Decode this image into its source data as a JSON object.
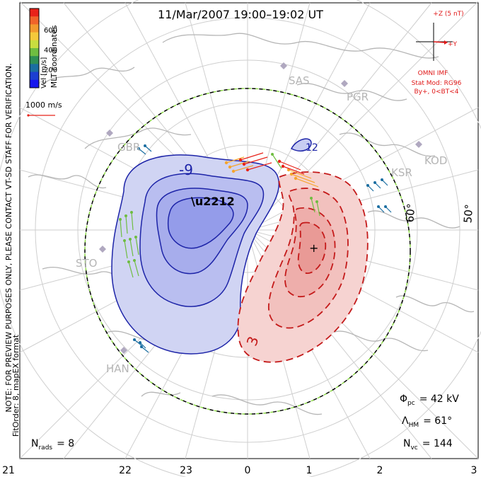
{
  "title": "11/Mar/2007  19:00–19:02  UT",
  "color_bar": {
    "label": "Vel [m/s]",
    "ticks": [
      "600",
      "400",
      "200"
    ],
    "colors": [
      "#e8231a",
      "#f0642a",
      "#f29a2e",
      "#f5c93b",
      "#c8dd3f",
      "#6fbd41",
      "#2f8f55",
      "#1b6ea1",
      "#1c3fd1",
      "#1717ee"
    ]
  },
  "mlt_label": "MLT coordinates",
  "vector_scale": "1000 m/s",
  "side_note": "NOTE: FOR PREVIEW PURPOSES ONLY, PLEASE CONTACT VT-SD STAFF FOR VERIFICATION.",
  "fit_order": "FitOrder: 8, mapEX format",
  "imf": {
    "z_label": "+Z (5 nT)",
    "y_label": "+Y",
    "source": "OMNI IMF",
    "stat_mod": "Stat Mod: RG96",
    "condition": "By+, 0<BT<4"
  },
  "stations": [
    "SAS",
    "PGR",
    "GBR",
    "KOD",
    "KSR",
    "STO",
    "HAN"
  ],
  "lat_labels": [
    "60°",
    "50°"
  ],
  "contour_labels": [
    "-9",
    "12",
    "3"
  ],
  "mlt_ticks": [
    "21",
    "22",
    "23",
    "0",
    "1",
    "2",
    "3"
  ],
  "stats": {
    "phi_symbol": "Φ",
    "phi_sub": "pc",
    "phi_value": "= 42 kV",
    "lambda_symbol": "Λ",
    "lambda_sub": "HM",
    "lambda_value": "= 61°",
    "nvc_symbol": "N",
    "nvc_sub": "vc",
    "nvc_value": "= 144",
    "nrads_symbol": "N",
    "nrads_sub": "rads",
    "nrads_value": "= 8"
  },
  "colors": {
    "negative_fill": "#c8cdf2",
    "negative_core": "#9ea6ec",
    "negative_line": "#1d24a8",
    "positive_fill": "#f6d3d1",
    "positive_core": "#eca5a2",
    "positive_line": "#c41a1a",
    "imf_red": "#e01818",
    "grid": "#c8c8c8",
    "coast": "#b9b9b9"
  }
}
